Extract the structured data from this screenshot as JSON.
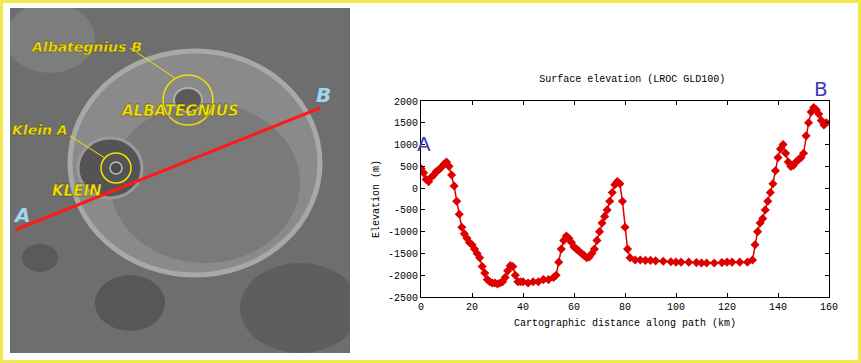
{
  "chart_data": {
    "type": "line",
    "title": "Surface elevation (LROC GLD100)",
    "x_label": "Cartographic distance along path (km)",
    "y_label": "Elevation (m)",
    "x": [
      0,
      1,
      2,
      3,
      4,
      5,
      6,
      7,
      8,
      9,
      10,
      11,
      12,
      13,
      14,
      15,
      16,
      17,
      18,
      19,
      20,
      21,
      22,
      23,
      24,
      25,
      26,
      27,
      28,
      29,
      30,
      31,
      32,
      33,
      34,
      35,
      36,
      37,
      38,
      39,
      40,
      42,
      44,
      46,
      48,
      50,
      52,
      53,
      54,
      55,
      56,
      57,
      58,
      59,
      60,
      61,
      62,
      63,
      64,
      65,
      66,
      67,
      68,
      69,
      70,
      71,
      72,
      73,
      74,
      75,
      76,
      77,
      78,
      79,
      80,
      81,
      82,
      84,
      86,
      88,
      90,
      92,
      95,
      98,
      100,
      102,
      105,
      108,
      110,
      112,
      115,
      118,
      120,
      122,
      125,
      128,
      130,
      131,
      132,
      133,
      134,
      135,
      136,
      137,
      138,
      139,
      140,
      141,
      142,
      143,
      144,
      145,
      146,
      147,
      148,
      149,
      150,
      151,
      152,
      153,
      154,
      155,
      156,
      157,
      158,
      159
    ],
    "values": [
      450,
      350,
      200,
      150,
      250,
      300,
      380,
      420,
      480,
      550,
      600,
      500,
      300,
      50,
      -300,
      -600,
      -900,
      -1050,
      -1150,
      -1250,
      -1300,
      -1400,
      -1500,
      -1600,
      -1800,
      -1950,
      -2100,
      -2150,
      -2180,
      -2180,
      -2200,
      -2180,
      -2150,
      -2050,
      -1900,
      -1780,
      -1800,
      -2000,
      -2150,
      -2150,
      -2150,
      -2180,
      -2150,
      -2150,
      -2100,
      -2100,
      -2050,
      -2000,
      -1700,
      -1400,
      -1200,
      -1100,
      -1150,
      -1250,
      -1350,
      -1400,
      -1450,
      -1500,
      -1550,
      -1600,
      -1580,
      -1500,
      -1400,
      -1200,
      -1000,
      -800,
      -650,
      -500,
      -300,
      -100,
      80,
      150,
      100,
      -300,
      -900,
      -1400,
      -1600,
      -1650,
      -1650,
      -1660,
      -1660,
      -1670,
      -1680,
      -1690,
      -1700,
      -1700,
      -1700,
      -1710,
      -1720,
      -1720,
      -1720,
      -1710,
      -1700,
      -1700,
      -1700,
      -1700,
      -1650,
      -1300,
      -1000,
      -800,
      -700,
      -500,
      -300,
      -100,
      100,
      400,
      700,
      900,
      1000,
      800,
      600,
      500,
      520,
      600,
      650,
      700,
      800,
      1200,
      1500,
      1750,
      1850,
      1800,
      1700,
      1550,
      1450,
      1500
    ],
    "color": "#dd0000",
    "marker": "diamond",
    "line_style": "solid",
    "grid": false,
    "xlim": [
      0,
      160
    ],
    "ylim": [
      -2500,
      2000
    ],
    "xticks": [
      0,
      20,
      40,
      60,
      80,
      100,
      120,
      140,
      160
    ],
    "yticks": [
      -2500,
      -2000,
      -1500,
      -1000,
      -500,
      0,
      500,
      1000,
      1500,
      2000
    ],
    "annotations": [
      {
        "text": "A",
        "x": 1,
        "y": 700
      },
      {
        "text": "B",
        "x": 157,
        "y": 1960
      }
    ]
  },
  "photo": {
    "labels": [
      "Albategnius B",
      "Klein A",
      "ALBATEGNIUS",
      "KLEIN"
    ],
    "path_ends": [
      "A",
      "B"
    ]
  }
}
